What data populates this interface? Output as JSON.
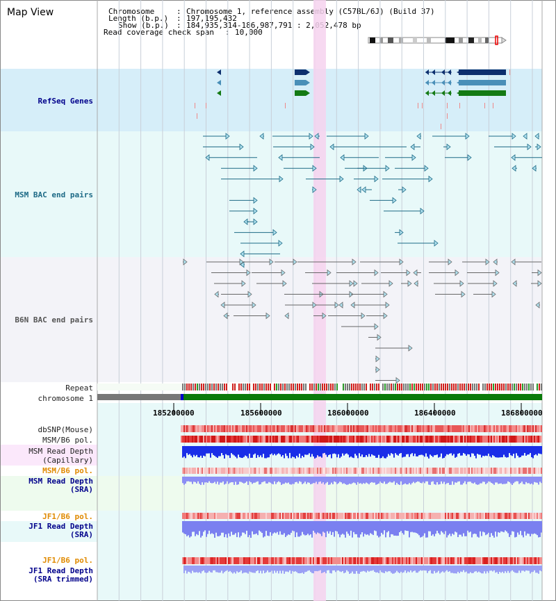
{
  "title": "Map View",
  "info": {
    "chromosome_label": "Chromosome",
    "chromosome_value": "Chromosome 1, reference assembly (C57BL/6J) (Build 37)",
    "length_label": "Length (b.p.)",
    "length_value": "197,195,432",
    "show_label": "Show (b.p.)",
    "show_value": "184,935,314-186,987,791 : 2,052,478 bp",
    "coverage_label": "Read coverage check span",
    "coverage_value": "10,000"
  },
  "tracks": {
    "refseq": "RefSeq Genes",
    "msm_bac": "MSM BAC end pairs",
    "b6n_bac": "B6N BAC end pairs",
    "repeat": "Repeat",
    "chromosome": "chromosome 1",
    "dbsnp": "dbSNP(Mouse)",
    "msm_b6_pol": "MSM/B6 pol.",
    "msm_depth_cap_1": "MSM Read Depth",
    "msm_depth_cap_2": "(Capillary)",
    "msm_b6_pol2": "MSM/B6 pol.",
    "msm_depth_sra_1": "MSM Read Depth",
    "msm_depth_sra_2": "(SRA)",
    "jf1_b6_pol": "JF1/B6 pol.",
    "jf1_depth_sra_1": "JF1 Read Depth",
    "jf1_depth_sra_2": "(SRA)",
    "jf1_b6_pol2": "JF1/B6 pol.",
    "jf1_depth_trim_1": "JF1 Read Depth",
    "jf1_depth_trim_2": "(SRA trimmed)"
  },
  "axis": {
    "ticks": [
      "185200000",
      "185600000",
      "186000000",
      "186400000",
      "186800000"
    ]
  },
  "colors": {
    "refseq_bg": "#d6eef9",
    "msm_bg": "#e8f9f9",
    "b6n_bg": "#f3f3f8",
    "highlight": "#f6d2ee",
    "refseq_dark": "#0d2f6e",
    "refseq_mid": "#4a8fb8",
    "refseq_green": "#147a14",
    "msm_line": "#1d6a86",
    "b6n_line": "#666666",
    "pol_label": "#e07b00",
    "depth_label": "#00008b",
    "repeat_red": "#d21e1e",
    "chrom_green": "#0a7a0a"
  }
}
